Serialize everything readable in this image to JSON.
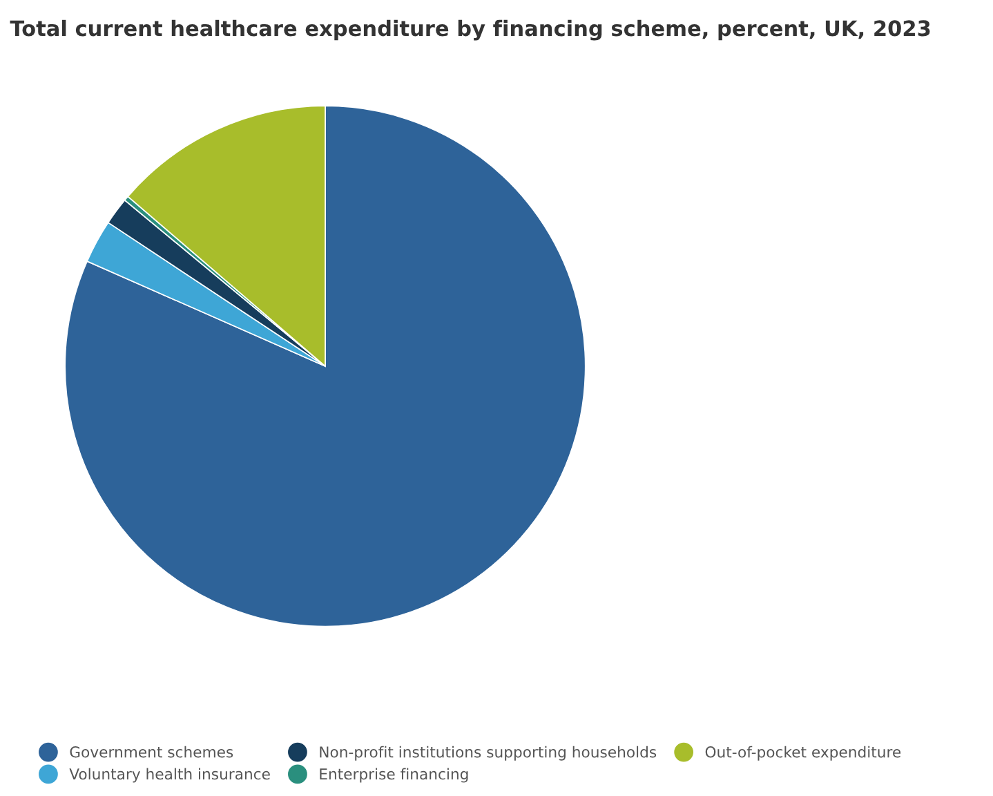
{
  "chart_data": {
    "type": "pie",
    "title": "Total current healthcare expenditure by financing scheme, percent, UK, 2023",
    "categories": [
      "Government schemes",
      "Voluntary health insurance",
      "Non-profit institutions supporting households",
      "Enterprise financing",
      "Out-of-pocket expenditure"
    ],
    "values": [
      81.6,
      2.7,
      1.7,
      0.3,
      13.7
    ],
    "colors": [
      "#2e6399",
      "#3ea6d6",
      "#163d5c",
      "#2a8f7e",
      "#a8bd2b"
    ],
    "legend": "bottom"
  }
}
